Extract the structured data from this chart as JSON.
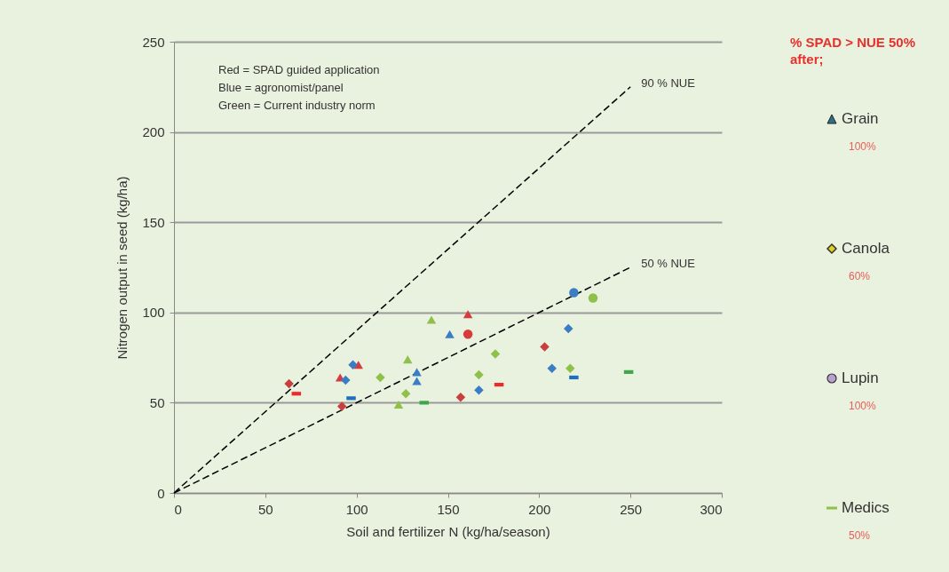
{
  "chart_data": {
    "type": "scatter",
    "xlabel": "Soil and fertilizer N (kg/ha/season)",
    "ylabel": "Nitrogen output in seed (kg/ha)",
    "xlim": [
      0,
      300
    ],
    "xticks": [
      0,
      50,
      100,
      150,
      200,
      250,
      300
    ],
    "ylim": [
      0,
      250
    ],
    "yticks": [
      0,
      50,
      100,
      150,
      200,
      250
    ],
    "grid": "y",
    "annotations": [
      "Red = SPAD guided application",
      "Blue = agronomist/panel",
      "Green = Current industry norm",
      "% SPAD > NUE 50% after;",
      "Grain",
      "100%",
      "Canola",
      "60%",
      "Lupin",
      "100%",
      "Medics",
      "50%"
    ],
    "series": [
      {
        "marker": "triangle",
        "color": "#d63c3c",
        "x": [
          91,
          101,
          161
        ],
        "values": [
          64,
          71,
          99
        ]
      },
      {
        "marker": "diamond",
        "color": "#c8403e",
        "x": [
          63,
          92,
          157,
          203
        ],
        "values": [
          60.5,
          48,
          53,
          81
        ]
      },
      {
        "marker": "circle",
        "color": "#d63c3c",
        "x": [
          161
        ],
        "values": [
          88
        ]
      },
      {
        "marker": "square",
        "color": "#f02a2a",
        "x": [
          67,
          178
        ],
        "values": [
          55,
          60
        ]
      },
      {
        "marker": "triangle",
        "color": "#3b7dc4",
        "x": [
          133,
          133,
          151
        ],
        "values": [
          67,
          62,
          88
        ]
      },
      {
        "marker": "diamond",
        "color": "#3b7dc4",
        "x": [
          98,
          94,
          167,
          216,
          207
        ],
        "values": [
          71,
          62.5,
          57,
          91,
          69
        ]
      },
      {
        "marker": "circle",
        "color": "#3b7dc4",
        "x": [
          219
        ],
        "values": [
          111
        ]
      },
      {
        "marker": "square",
        "color": "#1f6fc0",
        "x": [
          97,
          219
        ],
        "values": [
          52.5,
          64
        ]
      },
      {
        "marker": "triangle",
        "color": "#8fc04a",
        "x": [
          141,
          128,
          123
        ],
        "values": [
          96,
          74,
          49
        ]
      },
      {
        "marker": "diamond",
        "color": "#8fc04a",
        "x": [
          113,
          127,
          167,
          176,
          217
        ],
        "values": [
          64,
          55,
          65.5,
          77,
          69
        ]
      },
      {
        "marker": "circle",
        "color": "#8fc04a",
        "x": [
          229.5
        ],
        "values": [
          108
        ]
      },
      {
        "marker": "square",
        "color": "#3da74a",
        "x": [
          137,
          249
        ],
        "values": [
          50,
          67
        ]
      },
      {
        "name": "90 % NUE",
        "type": "line",
        "line_style": "dashed",
        "color": "#000000",
        "x": [
          0,
          250
        ],
        "values": [
          0,
          225
        ]
      },
      {
        "name": "50 % NUE",
        "type": "line",
        "line_style": "dashed",
        "color": "#000000",
        "x": [
          0,
          250
        ],
        "values": [
          0,
          125
        ]
      }
    ]
  }
}
